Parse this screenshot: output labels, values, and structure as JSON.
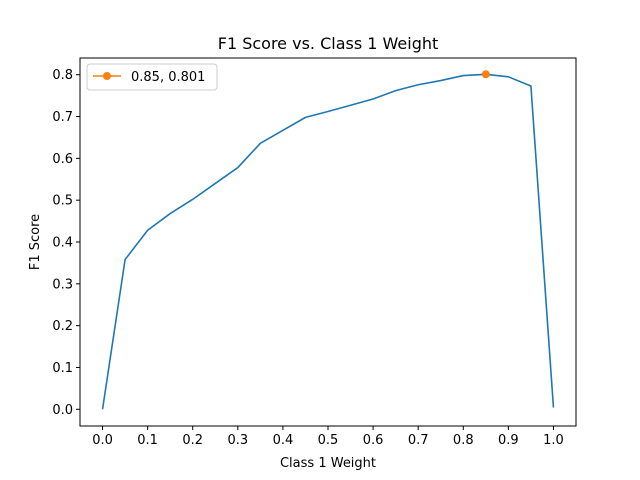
{
  "chart_data": {
    "type": "line",
    "title": "F1 Score vs. Class 1 Weight",
    "xlabel": "Class 1 Weight",
    "ylabel": "F1 Score",
    "xlim": [
      -0.05,
      1.05
    ],
    "ylim": [
      -0.04,
      0.84
    ],
    "xticks": [
      "0.0",
      "0.1",
      "0.2",
      "0.3",
      "0.4",
      "0.5",
      "0.6",
      "0.7",
      "0.8",
      "0.9",
      "1.0"
    ],
    "yticks": [
      "0.0",
      "0.1",
      "0.2",
      "0.3",
      "0.4",
      "0.5",
      "0.6",
      "0.7",
      "0.8"
    ],
    "grid": false,
    "legend_position": "top-left",
    "series": [
      {
        "color": "#1f77b4",
        "x": [
          0.0,
          0.05,
          0.1,
          0.15,
          0.2,
          0.25,
          0.3,
          0.35,
          0.4,
          0.45,
          0.5,
          0.55,
          0.6,
          0.65,
          0.7,
          0.75,
          0.8,
          0.85,
          0.9,
          0.95,
          1.0
        ],
        "y": [
          0.0,
          0.358,
          0.428,
          0.468,
          0.502,
          0.54,
          0.578,
          0.636,
          0.667,
          0.698,
          0.712,
          0.727,
          0.742,
          0.762,
          0.776,
          0.786,
          0.798,
          0.801,
          0.795,
          0.773,
          0.004
        ]
      },
      {
        "name": "0.85, 0.801",
        "color": "#ff7f0e",
        "marker": "circle",
        "x": [
          0.85
        ],
        "y": [
          0.801
        ]
      }
    ]
  }
}
